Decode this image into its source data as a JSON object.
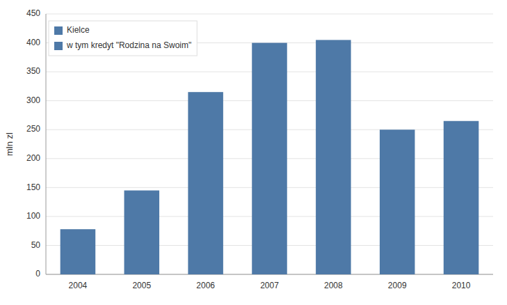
{
  "chart_data": {
    "type": "bar",
    "ylabel": "mln zl",
    "categories": [
      "2004",
      "2005",
      "2006",
      "2007",
      "2008",
      "2009",
      "2010"
    ],
    "values": [
      78,
      145,
      315,
      400,
      405,
      250,
      265
    ],
    "color": "#4e79a7",
    "ylim": [
      0,
      450
    ],
    "yticks": [
      0,
      50,
      100,
      150,
      200,
      250,
      300,
      350,
      400,
      450
    ],
    "grid": true,
    "legend": "upper left",
    "legend_entries": [
      "Kielce",
      "w tym kredyt \"Rodzina na Swoim\""
    ]
  }
}
